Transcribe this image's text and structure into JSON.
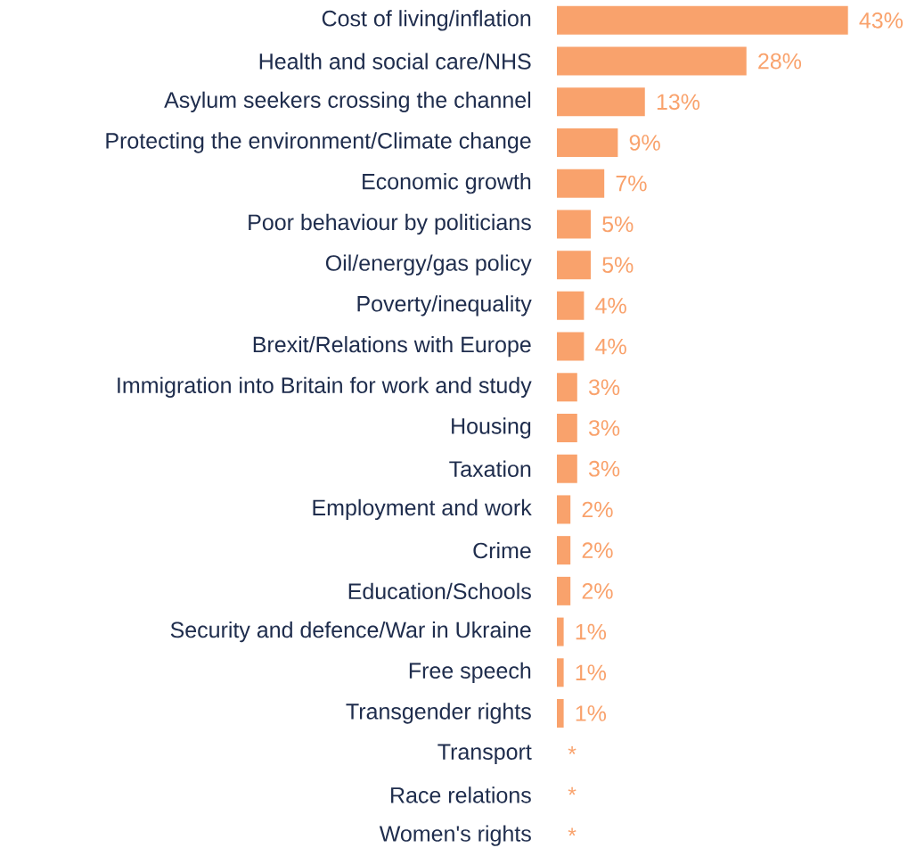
{
  "chart_data": {
    "type": "bar",
    "orientation": "horizontal",
    "color": "#f9a26c",
    "categories": [
      "Cost of living/inflation",
      "Health and social care/NHS",
      "Asylum seekers crossing the channel",
      "Protecting the environment/Climate change",
      "Economic growth",
      "Poor behaviour by politicians",
      "Oil/energy/gas policy",
      "Poverty/inequality",
      "Brexit/Relations with Europe",
      "Immigration into Britain for work and study",
      "Housing",
      "Taxation",
      "Employment and work",
      "Crime",
      "Education/Schools",
      "Security and defence/War in Ukraine",
      "Free speech",
      "Transgender rights",
      "Transport",
      "Race relations",
      "Women's rights"
    ],
    "values": [
      43,
      28,
      13,
      9,
      7,
      5,
      5,
      4,
      4,
      3,
      3,
      3,
      2,
      2,
      2,
      1,
      1,
      1,
      null,
      null,
      null
    ],
    "value_labels": [
      "43%",
      "28%",
      "13%",
      "9%",
      "7%",
      "5%",
      "5%",
      "4%",
      "4%",
      "3%",
      "3%",
      "3%",
      "2%",
      "2%",
      "2%",
      "1%",
      "1%",
      "1%",
      "*",
      "*",
      "*"
    ]
  }
}
